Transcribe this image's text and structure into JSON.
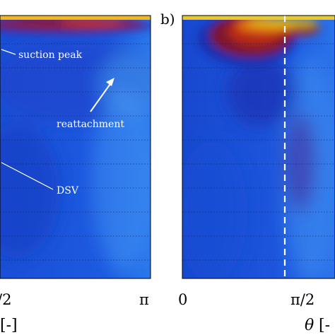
{
  "chart_data": [
    {
      "type": "heatmap",
      "panel_label": "",
      "xlabel_symbol": "",
      "xlabel_unit": "[-]",
      "xticks": [
        {
          "value": 1.5708,
          "label": "/2",
          "show_pi": false
        },
        {
          "value": 3.1416,
          "label": "π"
        }
      ],
      "grid": "horizontal dotted",
      "annotations": [
        {
          "text": "suction peak",
          "target": [
            0.0,
            0.85
          ]
        },
        {
          "text": "reattachment",
          "target": [
            2.85,
            0.82
          ]
        },
        {
          "text": "DSV",
          "target": [
            0.0,
            0.45
          ]
        }
      ]
    },
    {
      "type": "heatmap",
      "panel_label": "b)",
      "xlabel_symbol": "θ",
      "xlabel_unit": "[-",
      "xticks": [
        {
          "value": 0,
          "label": "0"
        },
        {
          "value": 1.5708,
          "label": "π/2"
        }
      ],
      "reference_line": {
        "x": 1.5,
        "style": "dashed",
        "color": "#ffffff"
      },
      "grid": "horizontal dotted"
    }
  ]
}
